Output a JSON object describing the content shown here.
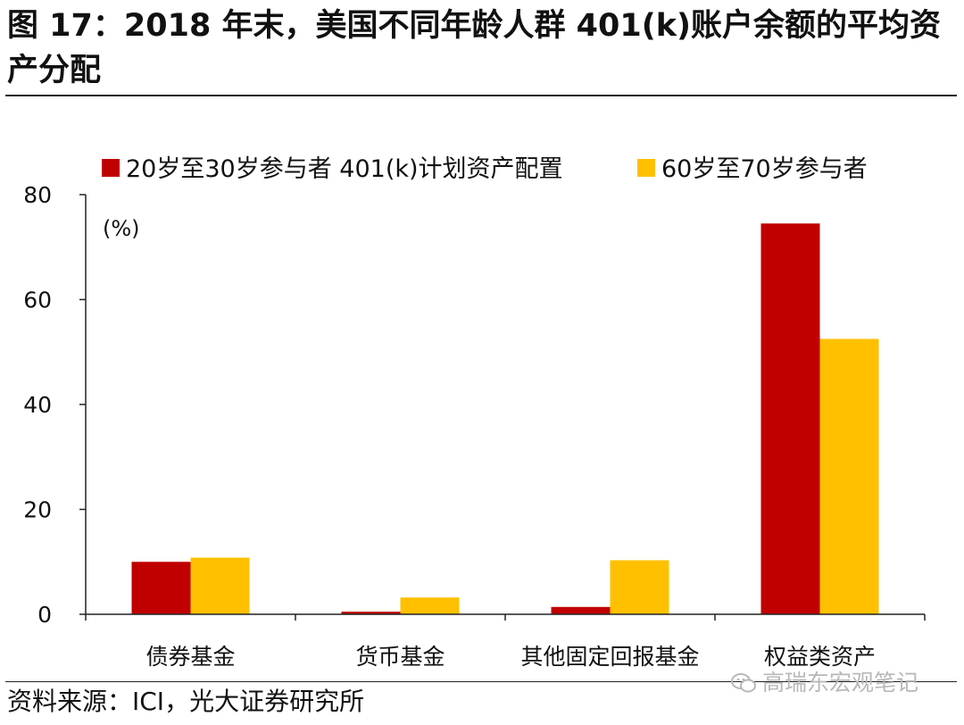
{
  "title": "图 17：2018 年末，美国不同年龄人群 401(k)账户余额的平均资产分配",
  "source": "资料来源：ICI，光大证券研究所",
  "watermark": "高瑞东宏观笔记",
  "chart_data": {
    "type": "bar",
    "categories": [
      "债券基金",
      "货币基金",
      "其他固定回报基金",
      "权益类资产"
    ],
    "series": [
      {
        "name": "20岁至30岁参与者 401(k)计划资产配置",
        "color": "#c00000",
        "values": [
          10,
          0.5,
          1.4,
          74.5
        ]
      },
      {
        "name": "60岁至70岁参与者",
        "color": "#ffc000",
        "values": [
          10.8,
          3.2,
          10.3,
          52.5
        ]
      }
    ],
    "unit": "(%)",
    "ylim": [
      0,
      80
    ],
    "yticks": [
      0,
      20,
      40,
      60,
      80
    ],
    "legend": "top",
    "grid": false
  }
}
